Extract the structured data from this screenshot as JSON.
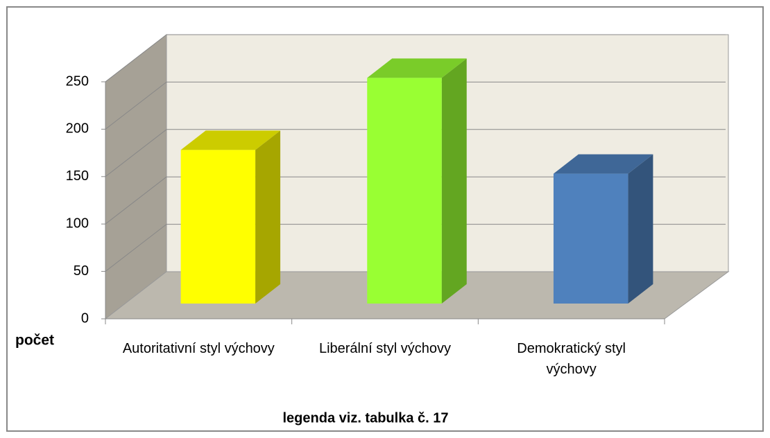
{
  "chart_data": {
    "type": "bar",
    "y_label": "počet",
    "footer": "legenda viz. tabulka č. 17",
    "categories": [
      "Autoritativní styl výchovy",
      "Liberální styl výchovy",
      "Demokratický styl výchovy"
    ],
    "values": [
      162,
      238,
      137
    ],
    "colors": [
      "#ffff00",
      "#99ff33",
      "#4f81bd"
    ],
    "ylim": [
      0,
      250
    ],
    "yticks": [
      0,
      50,
      100,
      150,
      200,
      250
    ],
    "grid": true
  }
}
